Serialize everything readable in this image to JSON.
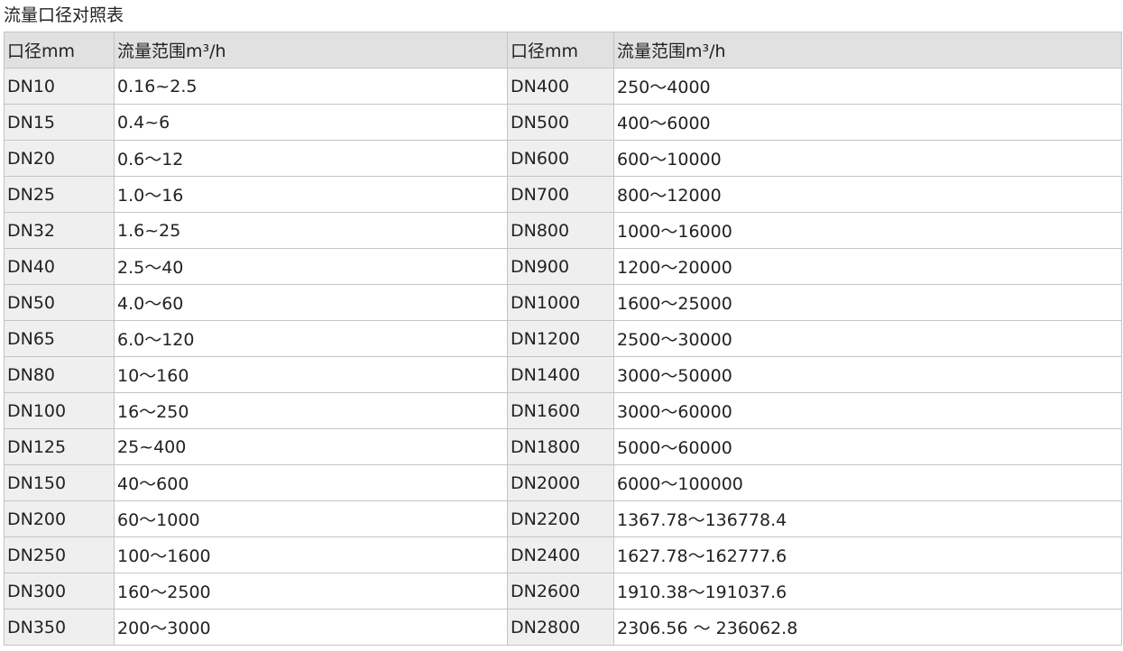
{
  "title": "流量口径对照表",
  "headers": [
    "口径mm",
    "流量范围m³/h",
    "口径mm",
    "流量范围m³/h"
  ],
  "rows": [
    [
      "DN10",
      "0.16~2.5",
      "DN400",
      "250～4000"
    ],
    [
      "DN15",
      "0.4~6",
      "DN500",
      "400～6000"
    ],
    [
      "DN20",
      "0.6～12",
      "DN600",
      "600～10000"
    ],
    [
      "DN25",
      "1.0～16",
      "DN700",
      "800～12000"
    ],
    [
      "DN32",
      "1.6~25",
      "DN800",
      "1000～16000"
    ],
    [
      "DN40",
      "2.5～40",
      "DN900",
      "1200～20000"
    ],
    [
      "DN50",
      "4.0～60",
      "DN1000",
      "1600～25000"
    ],
    [
      "DN65",
      "6.0～120",
      "DN1200",
      "2500～30000"
    ],
    [
      "DN80",
      "10～160",
      "DN1400",
      "3000～50000"
    ],
    [
      "DN100",
      "16～250",
      "DN1600",
      "3000～60000"
    ],
    [
      "DN125",
      "25~400",
      "DN1800",
      "5000～60000"
    ],
    [
      "DN150",
      "40～600",
      "DN2000",
      "6000～100000"
    ],
    [
      "DN200",
      "60～1000",
      "DN2200",
      "1367.78～136778.4"
    ],
    [
      "DN250",
      "100～1600",
      "DN2400",
      "1627.78～162777.6"
    ],
    [
      "DN300",
      "160～2500",
      "DN2600",
      "1910.38～191037.6"
    ],
    [
      "DN350",
      "200～3000",
      "DN2800",
      "2306.56 ～ 236062.8"
    ]
  ]
}
